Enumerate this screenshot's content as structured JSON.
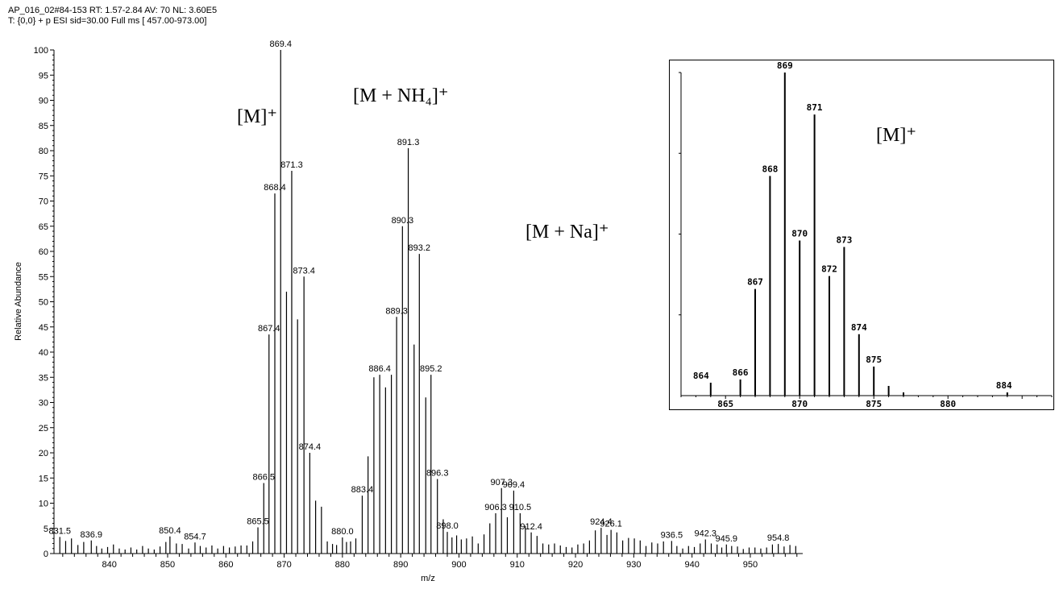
{
  "header": {
    "line1": "AP_016_02#84-153  RT: 1.57-2.84  AV: 70  NL: 3.60E5",
    "line2": "T: {0,0} + p ESI sid=30.00  Full ms [ 457.00-973.00]"
  },
  "annotations": {
    "m": "[M]⁺",
    "m_nh4": "[M + NH₄]⁺",
    "m_na": "[M + Na]⁺",
    "inset_m": "[M]⁺"
  },
  "chart_data": [
    {
      "type": "bar",
      "xlabel": "m/z",
      "ylabel": "Relative Abundance",
      "xlim": [
        830.5,
        959
      ],
      "ylim": [
        0,
        100
      ],
      "xticks": [
        840,
        850,
        860,
        870,
        880,
        890,
        900,
        910,
        920,
        930,
        940,
        950
      ],
      "yticks": [
        0,
        5,
        10,
        15,
        20,
        25,
        30,
        35,
        40,
        45,
        50,
        55,
        60,
        65,
        70,
        75,
        80,
        85,
        90,
        95,
        100
      ],
      "peaks": [
        {
          "x": 831.5,
          "y": 3.3,
          "label": "831.5"
        },
        {
          "x": 832.5,
          "y": 2.5
        },
        {
          "x": 833.5,
          "y": 3.0
        },
        {
          "x": 834.6,
          "y": 1.7
        },
        {
          "x": 835.6,
          "y": 2.3
        },
        {
          "x": 836.9,
          "y": 2.6,
          "label": "836.9"
        },
        {
          "x": 837.8,
          "y": 1.5
        },
        {
          "x": 838.7,
          "y": 1.0
        },
        {
          "x": 839.7,
          "y": 1.3
        },
        {
          "x": 840.7,
          "y": 1.8
        },
        {
          "x": 841.7,
          "y": 1.0
        },
        {
          "x": 842.7,
          "y": 0.8
        },
        {
          "x": 843.7,
          "y": 1.2
        },
        {
          "x": 844.7,
          "y": 0.8
        },
        {
          "x": 845.7,
          "y": 1.5
        },
        {
          "x": 846.7,
          "y": 1.0
        },
        {
          "x": 847.7,
          "y": 0.8
        },
        {
          "x": 848.7,
          "y": 1.4
        },
        {
          "x": 849.7,
          "y": 2.3
        },
        {
          "x": 850.4,
          "y": 3.4,
          "label": "850.4"
        },
        {
          "x": 851.5,
          "y": 2.0
        },
        {
          "x": 852.5,
          "y": 1.9
        },
        {
          "x": 853.6,
          "y": 1.0
        },
        {
          "x": 854.7,
          "y": 2.2,
          "label": "854.7"
        },
        {
          "x": 855.6,
          "y": 1.5
        },
        {
          "x": 856.6,
          "y": 1.2
        },
        {
          "x": 857.6,
          "y": 1.6
        },
        {
          "x": 858.6,
          "y": 1.0
        },
        {
          "x": 859.6,
          "y": 1.5
        },
        {
          "x": 860.6,
          "y": 1.2
        },
        {
          "x": 861.6,
          "y": 1.4
        },
        {
          "x": 862.6,
          "y": 1.6
        },
        {
          "x": 863.6,
          "y": 1.6
        },
        {
          "x": 864.6,
          "y": 2.4
        },
        {
          "x": 865.5,
          "y": 5.2,
          "label": "865.5"
        },
        {
          "x": 866.5,
          "y": 14.0,
          "label": "866.5"
        },
        {
          "x": 867.4,
          "y": 43.5,
          "label": "867.4"
        },
        {
          "x": 868.4,
          "y": 71.5,
          "label": "868.4"
        },
        {
          "x": 869.4,
          "y": 100.0,
          "label": "869.4"
        },
        {
          "x": 870.4,
          "y": 52.0
        },
        {
          "x": 871.3,
          "y": 76.0,
          "label": "871.3"
        },
        {
          "x": 872.3,
          "y": 46.5
        },
        {
          "x": 873.4,
          "y": 55.0,
          "label": "873.4"
        },
        {
          "x": 874.4,
          "y": 20.0,
          "label": "874.4"
        },
        {
          "x": 875.4,
          "y": 10.5
        },
        {
          "x": 876.4,
          "y": 9.3
        },
        {
          "x": 877.4,
          "y": 2.4
        },
        {
          "x": 878.3,
          "y": 1.9
        },
        {
          "x": 879.0,
          "y": 1.7
        },
        {
          "x": 880.0,
          "y": 3.2,
          "label": "880.0"
        },
        {
          "x": 880.7,
          "y": 2.3
        },
        {
          "x": 881.4,
          "y": 2.4
        },
        {
          "x": 882.3,
          "y": 3.0
        },
        {
          "x": 883.4,
          "y": 11.5,
          "label": "883.4"
        },
        {
          "x": 884.4,
          "y": 19.3
        },
        {
          "x": 885.4,
          "y": 35.0
        },
        {
          "x": 886.4,
          "y": 35.5,
          "label": "886.4"
        },
        {
          "x": 887.4,
          "y": 33.0
        },
        {
          "x": 888.4,
          "y": 35.5
        },
        {
          "x": 889.3,
          "y": 47.0,
          "label": "889.3"
        },
        {
          "x": 890.3,
          "y": 65.0,
          "label": "890.3"
        },
        {
          "x": 891.3,
          "y": 80.5,
          "label": "891.3"
        },
        {
          "x": 892.3,
          "y": 41.5
        },
        {
          "x": 893.2,
          "y": 59.5,
          "label": "893.2"
        },
        {
          "x": 894.3,
          "y": 31.0
        },
        {
          "x": 895.2,
          "y": 35.5,
          "label": "895.2"
        },
        {
          "x": 896.3,
          "y": 14.8,
          "label": "896.3"
        },
        {
          "x": 897.3,
          "y": 6.8
        },
        {
          "x": 898.0,
          "y": 4.3,
          "label": "898.0"
        },
        {
          "x": 898.8,
          "y": 3.2
        },
        {
          "x": 899.6,
          "y": 3.6
        },
        {
          "x": 900.4,
          "y": 2.8
        },
        {
          "x": 901.3,
          "y": 3.0
        },
        {
          "x": 902.3,
          "y": 3.4
        },
        {
          "x": 903.3,
          "y": 2.0
        },
        {
          "x": 904.3,
          "y": 3.8
        },
        {
          "x": 905.3,
          "y": 6.0
        },
        {
          "x": 906.3,
          "y": 8.0,
          "label": "906.3"
        },
        {
          "x": 907.3,
          "y": 13.0,
          "label": "907.3"
        },
        {
          "x": 908.3,
          "y": 7.2
        },
        {
          "x": 909.4,
          "y": 12.5,
          "label": "909.4"
        },
        {
          "x": 910.5,
          "y": 8.0,
          "label": "910.5"
        },
        {
          "x": 911.4,
          "y": 5.5
        },
        {
          "x": 912.4,
          "y": 4.2,
          "label": "912.4"
        },
        {
          "x": 913.4,
          "y": 3.5
        },
        {
          "x": 914.4,
          "y": 2.0
        },
        {
          "x": 915.4,
          "y": 1.8
        },
        {
          "x": 916.4,
          "y": 2.0
        },
        {
          "x": 917.4,
          "y": 1.6
        },
        {
          "x": 918.4,
          "y": 1.3
        },
        {
          "x": 919.4,
          "y": 1.2
        },
        {
          "x": 920.4,
          "y": 1.8
        },
        {
          "x": 921.4,
          "y": 2.0
        },
        {
          "x": 922.4,
          "y": 2.6
        },
        {
          "x": 923.4,
          "y": 4.6
        },
        {
          "x": 924.4,
          "y": 5.1,
          "label": "924.4"
        },
        {
          "x": 925.4,
          "y": 3.7
        },
        {
          "x": 926.1,
          "y": 4.7,
          "label": "926.1"
        },
        {
          "x": 927.1,
          "y": 4.2
        },
        {
          "x": 928.1,
          "y": 2.6
        },
        {
          "x": 929.1,
          "y": 3.1
        },
        {
          "x": 930.1,
          "y": 3.0
        },
        {
          "x": 931.1,
          "y": 2.6
        },
        {
          "x": 932.1,
          "y": 1.5
        },
        {
          "x": 933.1,
          "y": 2.2
        },
        {
          "x": 934.1,
          "y": 2.0
        },
        {
          "x": 935.1,
          "y": 2.4
        },
        {
          "x": 936.5,
          "y": 2.5,
          "label": "936.5"
        },
        {
          "x": 937.4,
          "y": 1.5
        },
        {
          "x": 938.4,
          "y": 1.0
        },
        {
          "x": 939.4,
          "y": 1.5
        },
        {
          "x": 940.4,
          "y": 1.3
        },
        {
          "x": 941.4,
          "y": 2.0
        },
        {
          "x": 942.3,
          "y": 2.8,
          "label": "942.3"
        },
        {
          "x": 943.3,
          "y": 2.0
        },
        {
          "x": 944.3,
          "y": 1.8
        },
        {
          "x": 945.1,
          "y": 1.2
        },
        {
          "x": 945.9,
          "y": 1.8,
          "label": "945.9"
        },
        {
          "x": 946.8,
          "y": 1.5
        },
        {
          "x": 947.8,
          "y": 1.4
        },
        {
          "x": 948.8,
          "y": 0.9
        },
        {
          "x": 949.8,
          "y": 1.2
        },
        {
          "x": 950.8,
          "y": 1.2
        },
        {
          "x": 951.8,
          "y": 1.0
        },
        {
          "x": 952.8,
          "y": 1.2
        },
        {
          "x": 953.8,
          "y": 1.8
        },
        {
          "x": 954.8,
          "y": 1.9,
          "label": "954.8"
        },
        {
          "x": 955.8,
          "y": 1.4
        },
        {
          "x": 956.8,
          "y": 1.7
        },
        {
          "x": 957.8,
          "y": 1.5
        }
      ]
    },
    {
      "type": "bar",
      "xlim": [
        862,
        887
      ],
      "ylim": [
        0,
        100
      ],
      "xticks": [
        865,
        870,
        875,
        880
      ],
      "peaks": [
        {
          "x": 864,
          "y": 4,
          "label": "864"
        },
        {
          "x": 866,
          "y": 5,
          "label": "866"
        },
        {
          "x": 867,
          "y": 33,
          "label": "867"
        },
        {
          "x": 868,
          "y": 68,
          "label": "868"
        },
        {
          "x": 869,
          "y": 100,
          "label": "869"
        },
        {
          "x": 870,
          "y": 48,
          "label": "870"
        },
        {
          "x": 871,
          "y": 87,
          "label": "871"
        },
        {
          "x": 872,
          "y": 37,
          "label": "872"
        },
        {
          "x": 873,
          "y": 46,
          "label": "873"
        },
        {
          "x": 874,
          "y": 19,
          "label": "874"
        },
        {
          "x": 875,
          "y": 9,
          "label": "875"
        },
        {
          "x": 876,
          "y": 3
        },
        {
          "x": 877,
          "y": 1
        },
        {
          "x": 884,
          "y": 1,
          "label": "884"
        }
      ]
    }
  ]
}
